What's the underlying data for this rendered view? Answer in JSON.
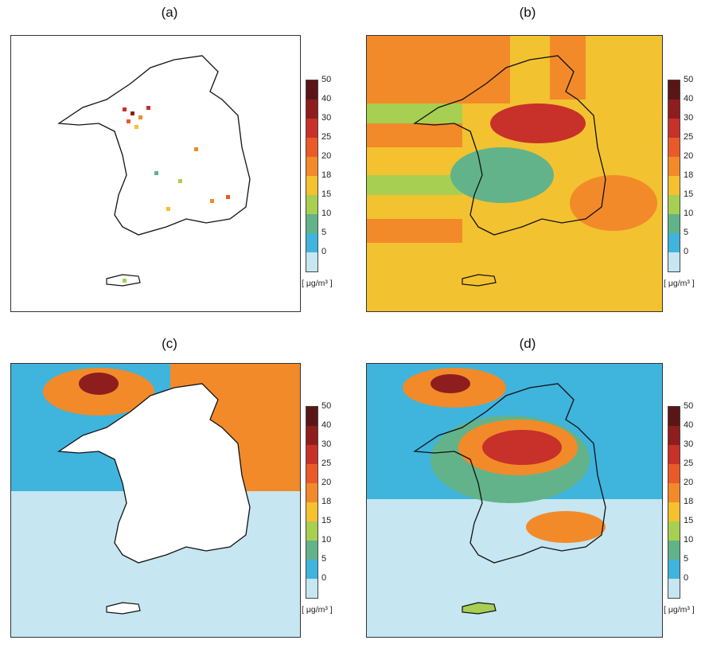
{
  "panels": {
    "a": {
      "label": "(a)"
    },
    "b": {
      "label": "(b)"
    },
    "c": {
      "label": "(c)"
    },
    "d": {
      "label": "(d)"
    }
  },
  "colorbar": {
    "ticks": [
      "50",
      "40",
      "30",
      "25",
      "20",
      "18",
      "15",
      "10",
      "5",
      "0"
    ],
    "colors": [
      "#5a1616",
      "#8e1e1e",
      "#c8302a",
      "#ea5a28",
      "#f28a2a",
      "#f5c12e",
      "#a7cf52",
      "#62b38a",
      "#3fb4dd",
      "#c6e6f1"
    ],
    "unit": "[ μg/m³ ]"
  }
}
